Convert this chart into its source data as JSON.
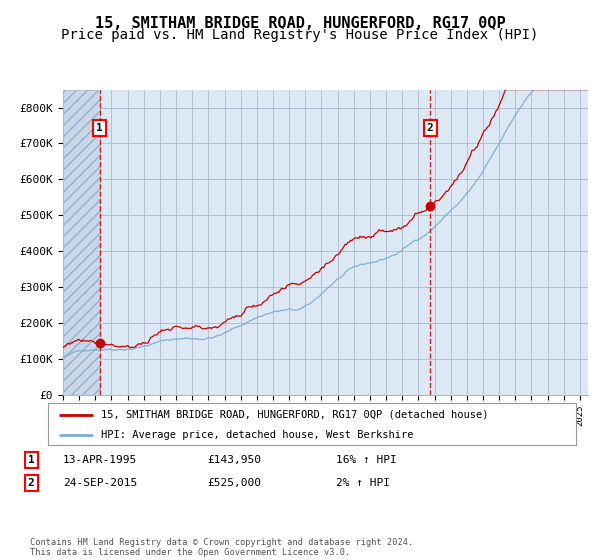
{
  "title": "15, SMITHAM BRIDGE ROAD, HUNGERFORD, RG17 0QP",
  "subtitle": "Price paid vs. HM Land Registry's House Price Index (HPI)",
  "legend_line1": "15, SMITHAM BRIDGE ROAD, HUNGERFORD, RG17 0QP (detached house)",
  "legend_line2": "HPI: Average price, detached house, West Berkshire",
  "annotation1_label": "1",
  "annotation1_date": "13-APR-1995",
  "annotation1_price": "£143,950",
  "annotation1_hpi": "16% ↑ HPI",
  "annotation2_label": "2",
  "annotation2_date": "24-SEP-2015",
  "annotation2_price": "£525,000",
  "annotation2_hpi": "2% ↑ HPI",
  "footer": "Contains HM Land Registry data © Crown copyright and database right 2024.\nThis data is licensed under the Open Government Licence v3.0.",
  "sale1_x": 1995.28,
  "sale1_y": 143950,
  "sale2_x": 2015.73,
  "sale2_y": 525000,
  "ylim": [
    0,
    850000
  ],
  "xlim_start": 1993.0,
  "xlim_end": 2025.5,
  "bg_color": "#dce9f5",
  "hatch_bg": "#c8d8ea",
  "red_line_color": "#cc0000",
  "blue_line_color": "#7aadd4",
  "dashed_vline_color": "#cc0000",
  "sale_dot_color": "#cc0000",
  "grid_color": "#aabbcc",
  "title_fontsize": 11,
  "subtitle_fontsize": 10
}
